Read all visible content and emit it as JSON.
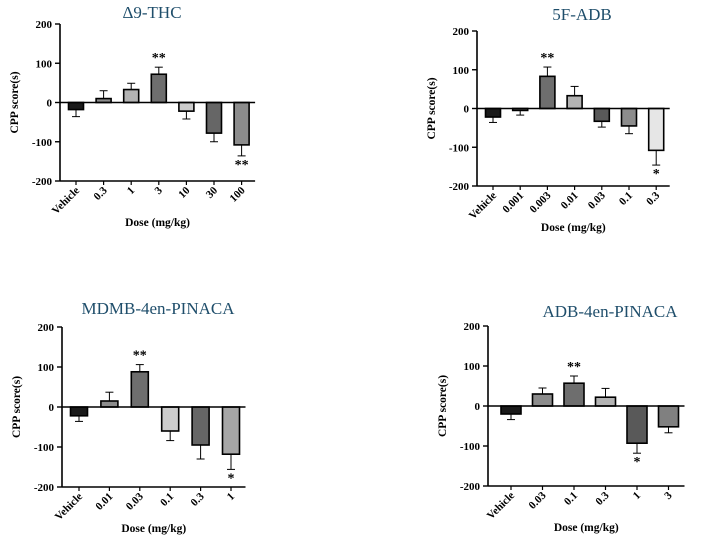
{
  "chart_data": [
    {
      "type": "bar",
      "title": "Δ9-THC",
      "xlabel": "Dose (mg/kg)",
      "ylabel": "CPP score(s)",
      "ylim": [
        -200,
        200
      ],
      "yticks": [
        200,
        100,
        0,
        -100,
        -200
      ],
      "categories": [
        "Vehicle",
        "0.3",
        "1",
        "3",
        "10",
        "30",
        "100"
      ],
      "values": [
        -18,
        10,
        33,
        72,
        -22,
        -78,
        -108
      ],
      "errors": [
        18,
        20,
        16,
        18,
        20,
        22,
        28
      ],
      "significance": [
        "",
        "",
        "",
        "**",
        "",
        "",
        "**"
      ],
      "colors": [
        "#1a1a1a",
        "#8c8c8c",
        "#b3b3b3",
        "#6e6e6e",
        "#cccccc",
        "#666666",
        "#8c8c8c"
      ]
    },
    {
      "type": "bar",
      "title": "5F-ADB",
      "xlabel": "Dose (mg/kg)",
      "ylabel": "CPP score(s)",
      "ylim": [
        -200,
        200
      ],
      "yticks": [
        200,
        100,
        0,
        -100,
        -200
      ],
      "categories": [
        "Vehicle",
        "0.001",
        "0.003",
        "0.01",
        "0.03",
        "0.1",
        "0.3"
      ],
      "values": [
        -22,
        -5,
        83,
        33,
        -33,
        -45,
        -108
      ],
      "errors": [
        14,
        12,
        24,
        24,
        15,
        20,
        38
      ],
      "significance": [
        "",
        "",
        "**",
        "",
        "",
        "",
        "*"
      ],
      "colors": [
        "#1a1a1a",
        "#8c8c8c",
        "#6e6e6e",
        "#b3b3b3",
        "#595959",
        "#8c8c8c",
        "#e6e6e6"
      ]
    },
    {
      "type": "bar",
      "title": "MDMB-4en-PINACA",
      "xlabel": "Dose (mg/kg)",
      "ylabel": "CPP score(s)",
      "ylim": [
        -200,
        200
      ],
      "yticks": [
        200,
        100,
        0,
        -100,
        -200
      ],
      "categories": [
        "Vehicle",
        "0.01",
        "0.03",
        "0.1",
        "0.3",
        "1"
      ],
      "values": [
        -22,
        15,
        88,
        -60,
        -95,
        -118
      ],
      "errors": [
        14,
        22,
        18,
        24,
        35,
        38
      ],
      "significance": [
        "",
        "",
        "**",
        "",
        "",
        "*"
      ],
      "colors": [
        "#1a1a1a",
        "#8c8c8c",
        "#6e6e6e",
        "#cccccc",
        "#666666",
        "#a6a6a6"
      ]
    },
    {
      "type": "bar",
      "title": "ADB-4en-PINACA",
      "xlabel": "Dose (mg/kg)",
      "ylabel": "CPP score(s)",
      "ylim": [
        -200,
        200
      ],
      "yticks": [
        200,
        100,
        0,
        -100,
        -200
      ],
      "categories": [
        "Vehicle",
        "0.03",
        "0.1",
        "0.3",
        "1",
        "3"
      ],
      "values": [
        -20,
        30,
        57,
        22,
        -93,
        -52
      ],
      "errors": [
        14,
        15,
        18,
        22,
        25,
        15
      ],
      "significance": [
        "",
        "",
        "**",
        "",
        "*",
        ""
      ],
      "colors": [
        "#1a1a1a",
        "#8c8c8c",
        "#6e6e6e",
        "#b3b3b3",
        "#595959",
        "#808080"
      ]
    }
  ]
}
